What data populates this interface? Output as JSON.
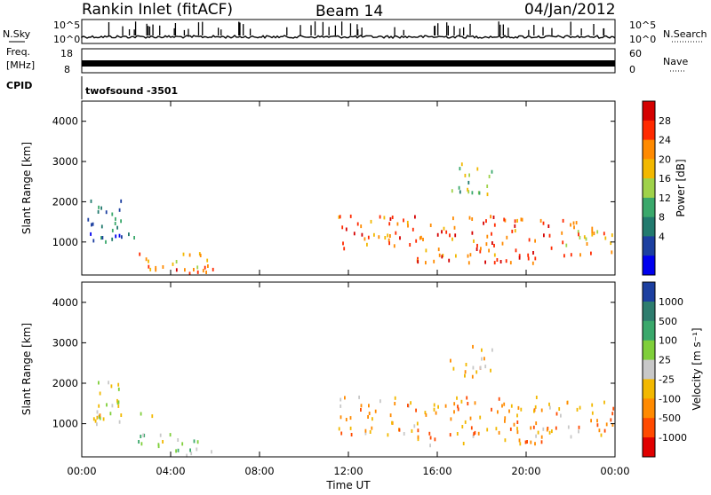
{
  "header": {
    "radar": "Rankin Inlet (fitACF)",
    "beam": "Beam 14",
    "date": "04/Jan/2012"
  },
  "noise_panel": {
    "left_label": "N.Sky",
    "right_label": "N.Search",
    "top_tick": "10^5",
    "bottom_tick": "10^0"
  },
  "freq_panel": {
    "left_label_line1": "Freq.",
    "left_label_line2": "[MHz]",
    "right_label": "Nave",
    "left_ticks": [
      "18",
      "8"
    ],
    "right_ticks": [
      "60",
      "0"
    ]
  },
  "cpid_panel": {
    "label": "CPID",
    "program": "twofsound",
    "cpid_value": "-3501"
  },
  "power_panel": {
    "ylabel": "Slant Range [km]",
    "colorbar_label": "Power [dB]",
    "colorbar_ticks": [
      "28",
      "24",
      "20",
      "16",
      "12",
      "8",
      "4"
    ],
    "colorbar_colors": [
      "#d40000",
      "#ff2a00",
      "#ff8a00",
      "#f2b800",
      "#9fd24a",
      "#3aa86b",
      "#227a6e",
      "#1c3fa0",
      "#0000ee"
    ]
  },
  "velocity_panel": {
    "ylabel": "Slant Range [km]",
    "colorbar_label": "Velocity [m s⁻¹]",
    "colorbar_ticks": [
      "1000",
      "500",
      "100",
      "25",
      "-25",
      "-100",
      "-500",
      "-1000"
    ],
    "colorbar_colors": [
      "#1c3fa0",
      "#2e7d6e",
      "#3aa86b",
      "#7fcf3a",
      "#c8c8c8",
      "#f2b800",
      "#ff8a00",
      "#ff4a00",
      "#e00000"
    ]
  },
  "x_axis": {
    "label": "Time UT",
    "ticks": [
      "00:00",
      "04:00",
      "08:00",
      "12:00",
      "16:00",
      "20:00",
      "00:00"
    ]
  },
  "chart_data": [
    {
      "type": "heatmap",
      "title": "Power",
      "xlabel": "Time UT",
      "ylabel": "Slant Range [km]",
      "xlim": [
        0,
        24
      ],
      "ylim": [
        180,
        4500
      ],
      "ytick_labels": [
        "1000",
        "2000",
        "3000",
        "4000"
      ],
      "colorbar": "Power [dB]",
      "colorbar_range": [
        0,
        32
      ],
      "regions": [
        {
          "t0": 0.0,
          "t1": 1.8,
          "r0": 1000,
          "r1": 2100,
          "value": 9
        },
        {
          "t0": 0.3,
          "t1": 4.1,
          "r0": 1150,
          "r1": 1300,
          "value": 7
        },
        {
          "t0": 2.5,
          "t1": 6.0,
          "r0": 250,
          "r1": 800,
          "value": 21
        },
        {
          "t0": 4.0,
          "t1": 6.0,
          "r0": 200,
          "r1": 420,
          "value": 28
        },
        {
          "t0": 11.5,
          "t1": 15.0,
          "r0": 750,
          "r1": 1700,
          "value": 24
        },
        {
          "t0": 15.0,
          "t1": 21.0,
          "r0": 500,
          "r1": 1700,
          "value": 26
        },
        {
          "t0": 21.0,
          "t1": 24.0,
          "r0": 700,
          "r1": 1600,
          "value": 22
        },
        {
          "t0": 16.5,
          "t1": 18.5,
          "r0": 2200,
          "r1": 3000,
          "value": 14
        }
      ]
    },
    {
      "type": "heatmap",
      "title": "Velocity",
      "xlabel": "Time UT",
      "ylabel": "Slant Range [km]",
      "xlim": [
        0,
        24
      ],
      "ylim": [
        180,
        4500
      ],
      "ytick_labels": [
        "1000",
        "2000",
        "3000",
        "4000"
      ],
      "colorbar": "Velocity [m s⁻¹]",
      "colorbar_range": [
        -1000,
        1000
      ],
      "regions": [
        {
          "t0": 0.0,
          "t1": 1.8,
          "r0": 1000,
          "r1": 2100,
          "value": 0
        },
        {
          "t0": 0.3,
          "t1": 4.1,
          "r0": 1150,
          "r1": 1300,
          "value": 0
        },
        {
          "t0": 2.5,
          "t1": 6.0,
          "r0": 250,
          "r1": 800,
          "value": 150
        },
        {
          "t0": 11.5,
          "t1": 15.0,
          "r0": 750,
          "r1": 1700,
          "value": -300
        },
        {
          "t0": 15.0,
          "t1": 21.0,
          "r0": 500,
          "r1": 1700,
          "value": -400
        },
        {
          "t0": 21.0,
          "t1": 24.0,
          "r0": 700,
          "r1": 1600,
          "value": -350
        },
        {
          "t0": 16.5,
          "t1": 18.5,
          "r0": 2200,
          "r1": 3000,
          "value": -300
        }
      ]
    }
  ]
}
